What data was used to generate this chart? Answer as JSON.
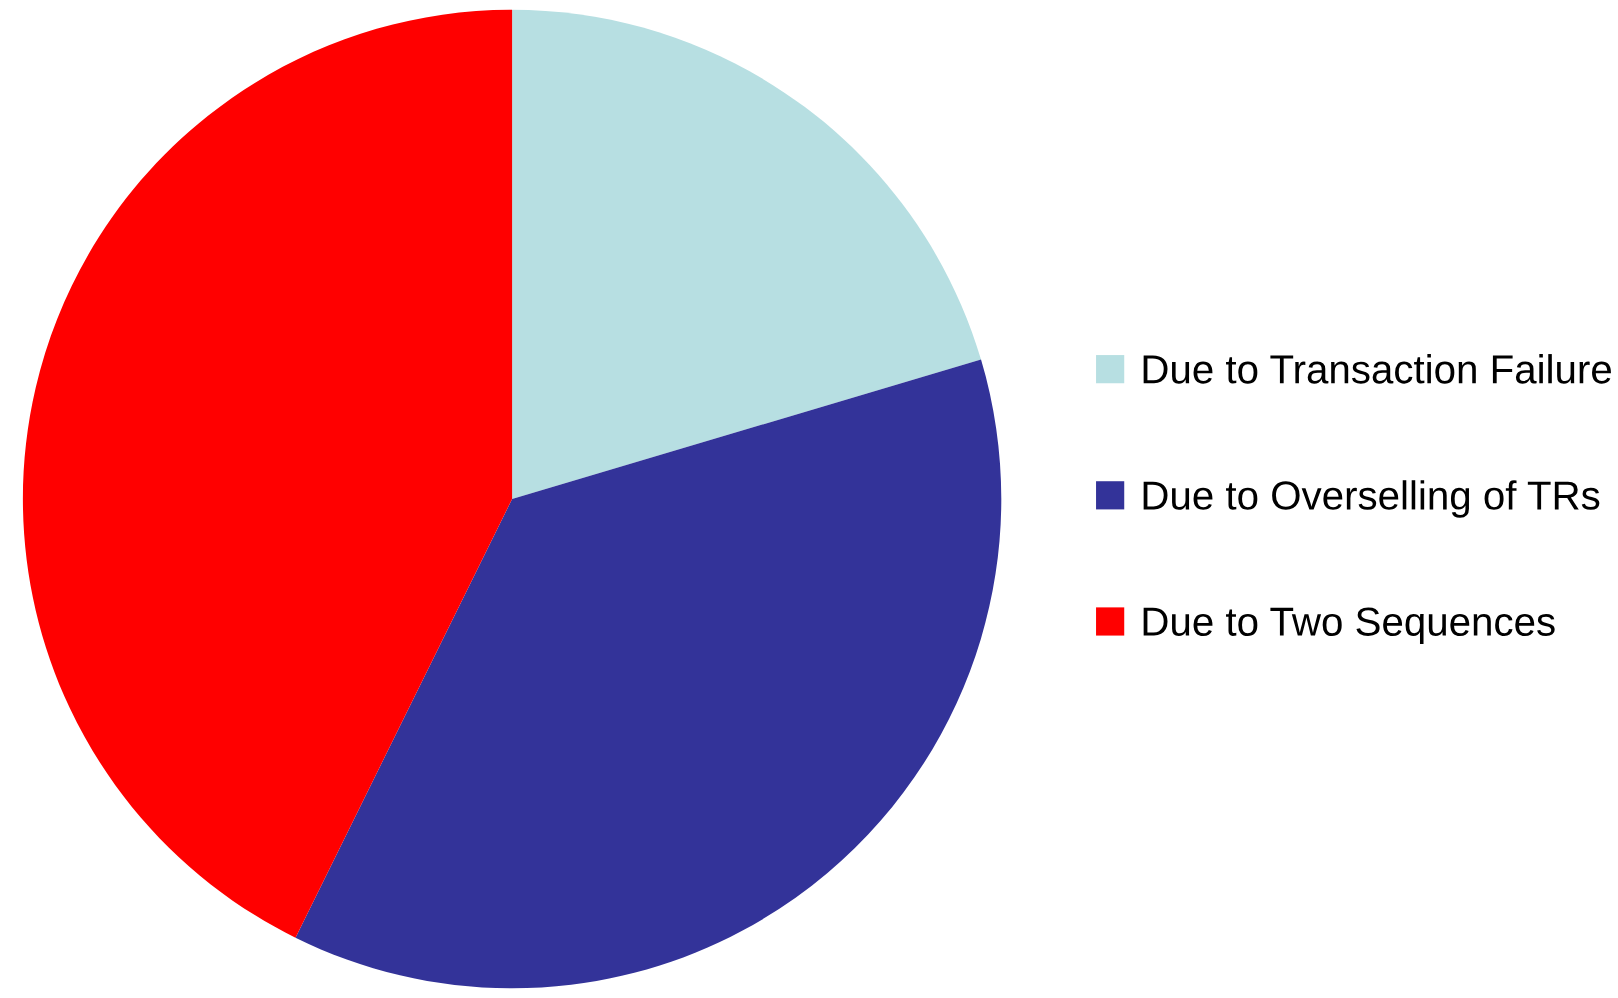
{
  "chart_data": {
    "type": "pie",
    "categories": [
      "Due to Transaction Failure",
      "Due to Overselling of TRs",
      "Due to Two Sequences"
    ],
    "values": [
      20.4,
      36.9,
      42.7
    ],
    "colors": [
      "#b7dfe2",
      "#333399",
      "#ff0000"
    ],
    "legend": "right"
  }
}
